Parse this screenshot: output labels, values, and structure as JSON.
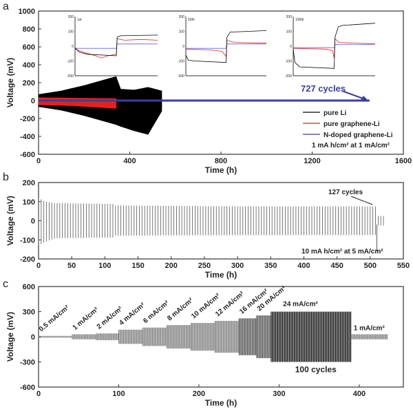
{
  "chart_data": [
    {
      "panel": "a",
      "type": "line",
      "xlabel": "Time (h)",
      "ylabel": "Voltage (mV)",
      "xlim": [
        0,
        1600
      ],
      "ylim": [
        -600,
        1000
      ],
      "xticks": [
        "0",
        "400",
        "800",
        "1200",
        "1600"
      ],
      "yticks": [
        "-600",
        "-400",
        "-200",
        "0",
        "200",
        "400",
        "600",
        "800",
        "1000"
      ],
      "legend": "bottom-right",
      "series": [
        {
          "name": "pure Li",
          "color": "#000000",
          "envelope": [
            [
              0,
              70,
              -70
            ],
            [
              100,
              110,
              -110
            ],
            [
              200,
              170,
              -170
            ],
            [
              340,
              270,
              -270
            ],
            [
              360,
              130,
              -290
            ],
            [
              420,
              120,
              -340
            ],
            [
              480,
              150,
              -380
            ],
            [
              540,
              110,
              -120
            ]
          ]
        },
        {
          "name": "pure graphene-Li",
          "color": "#e8201c",
          "envelope": [
            [
              0,
              35,
              -50
            ],
            [
              150,
              30,
              -60
            ],
            [
              340,
              25,
              -90
            ]
          ]
        },
        {
          "name": "N-doped graphene-Li",
          "color": "#3a3ea0",
          "envelope": [
            [
              0,
              8,
              -8
            ],
            [
              1450,
              8,
              -8
            ]
          ]
        }
      ],
      "annotations": [
        "727 cycles",
        "1 mA h/cm² at 1 mA/cm²"
      ],
      "insets": [
        {
          "label": "1st",
          "ylim": [
            -200,
            200
          ],
          "yticks": [
            "-200",
            "-100",
            "0",
            "100",
            "200"
          ],
          "curves": {
            "pure Li": [
              [
                0,
                -10
              ],
              [
                0.05,
                -40
              ],
              [
                0.15,
                -55
              ],
              [
                0.5,
                -65
              ],
              [
                0.51,
                60
              ],
              [
                0.55,
                70
              ],
              [
                1,
                75
              ]
            ],
            "pure graphene-Li": [
              [
                0,
                -20
              ],
              [
                0.1,
                -40
              ],
              [
                0.25,
                -65
              ],
              [
                0.32,
                -80
              ],
              [
                0.4,
                -65
              ],
              [
                0.5,
                -55
              ],
              [
                0.51,
                50
              ],
              [
                0.6,
                40
              ],
              [
                0.8,
                45
              ],
              [
                1,
                40
              ]
            ],
            "N-doped graphene-Li": [
              [
                0,
                -15
              ],
              [
                0.5,
                -15
              ],
              [
                0.51,
                15
              ],
              [
                1,
                15
              ]
            ]
          }
        },
        {
          "label": "50th",
          "ylim": [
            -200,
            200
          ],
          "yticks": [
            "-200",
            "-100",
            "0",
            "100",
            "200"
          ],
          "curves": {
            "pure Li": [
              [
                0,
                -60
              ],
              [
                0.03,
                -95
              ],
              [
                0.1,
                -100
              ],
              [
                0.5,
                -110
              ],
              [
                0.51,
                60
              ],
              [
                0.55,
                95
              ],
              [
                1,
                105
              ]
            ],
            "pure graphene-Li": [
              [
                0,
                -20
              ],
              [
                0.3,
                -25
              ],
              [
                0.45,
                -35
              ],
              [
                0.5,
                -70
              ],
              [
                0.51,
                40
              ],
              [
                0.6,
                25
              ],
              [
                1,
                20
              ]
            ],
            "N-doped graphene-Li": [
              [
                0,
                -15
              ],
              [
                0.5,
                -15
              ],
              [
                0.51,
                15
              ],
              [
                1,
                15
              ]
            ]
          }
        },
        {
          "label": "100th",
          "ylim": [
            -200,
            200
          ],
          "yticks": [
            "-200",
            "-100",
            "0",
            "100",
            "200"
          ],
          "curves": {
            "pure Li": [
              [
                0,
                -20
              ],
              [
                0.02,
                -110
              ],
              [
                0.08,
                -140
              ],
              [
                0.5,
                -150
              ],
              [
                0.51,
                60
              ],
              [
                0.55,
                130
              ],
              [
                0.6,
                140
              ],
              [
                1,
                155
              ]
            ],
            "pure graphene-Li": [
              [
                0,
                -15
              ],
              [
                0.4,
                -20
              ],
              [
                0.48,
                -30
              ],
              [
                0.5,
                -80
              ],
              [
                0.51,
                50
              ],
              [
                0.56,
                25
              ],
              [
                1,
                15
              ]
            ],
            "N-doped graphene-Li": [
              [
                0,
                -10
              ],
              [
                0.5,
                -10
              ],
              [
                0.51,
                12
              ],
              [
                1,
                12
              ]
            ]
          }
        }
      ]
    },
    {
      "panel": "b",
      "type": "line",
      "xlabel": "Time (h)",
      "ylabel": "Voltage (mV)",
      "xlim": [
        0,
        550
      ],
      "ylim": [
        -200,
        200
      ],
      "xticks": [
        "0",
        "50",
        "100",
        "150",
        "200",
        "250",
        "300",
        "350",
        "400",
        "450",
        "500",
        "550"
      ],
      "yticks": [
        "-200",
        "-100",
        "0",
        "100",
        "200"
      ],
      "series": [
        {
          "color": "#555555",
          "period_h": 4,
          "envelope": [
            [
              0,
              120,
              -130
            ],
            [
              10,
              100,
              -110
            ],
            [
              25,
              92,
              -92
            ],
            [
              113,
              88,
              -88
            ],
            [
              115,
              80,
              -78
            ],
            [
              250,
              76,
              -76
            ],
            [
              510,
              75,
              -75
            ],
            [
              511,
              25,
              -25
            ],
            [
              520,
              25,
              -25
            ]
          ]
        }
      ],
      "annotations": [
        "127 cycles",
        "10 mA h/cm² at 5 mA/cm²"
      ]
    },
    {
      "panel": "c",
      "type": "line",
      "xlabel": "Time (h)",
      "ylabel": "Voltage (mV)",
      "xlim": [
        0,
        455
      ],
      "ylim": [
        -600,
        600
      ],
      "xticks": [
        "0",
        "100",
        "200",
        "300",
        "400"
      ],
      "yticks": [
        "-600",
        "-300",
        "0",
        "300",
        "600"
      ],
      "segments": [
        {
          "label": "0.5 mA/cm²",
          "start": 0,
          "end": 42,
          "amplitude": 10
        },
        {
          "label": "1 mA/cm²",
          "start": 42,
          "end": 72,
          "amplitude": 30
        },
        {
          "label": "2 mA/cm²",
          "start": 72,
          "end": 100,
          "amplitude": 40
        },
        {
          "label": "4 mA/cm²",
          "start": 100,
          "end": 130,
          "amplitude": 85
        },
        {
          "label": "6 mA/cm²",
          "start": 130,
          "end": 160,
          "amplitude": 110
        },
        {
          "label": "8 mA/cm²",
          "start": 160,
          "end": 190,
          "amplitude": 140
        },
        {
          "label": "10 mA/cm²",
          "start": 190,
          "end": 220,
          "amplitude": 165
        },
        {
          "label": "12 mA/cm²",
          "start": 220,
          "end": 250,
          "amplitude": 190
        },
        {
          "label": "16 mA/cm²",
          "start": 250,
          "end": 272,
          "amplitude": 220
        },
        {
          "label": "20 mA/cm²",
          "start": 272,
          "end": 290,
          "amplitude": 255
        },
        {
          "label": "24 mA/cm²",
          "start": 290,
          "end": 390,
          "amplitude": 300
        },
        {
          "label": "1 mA/cm²",
          "start": 390,
          "end": 435,
          "amplitude": 30
        }
      ],
      "annotations": [
        "100 cycles"
      ]
    }
  ]
}
